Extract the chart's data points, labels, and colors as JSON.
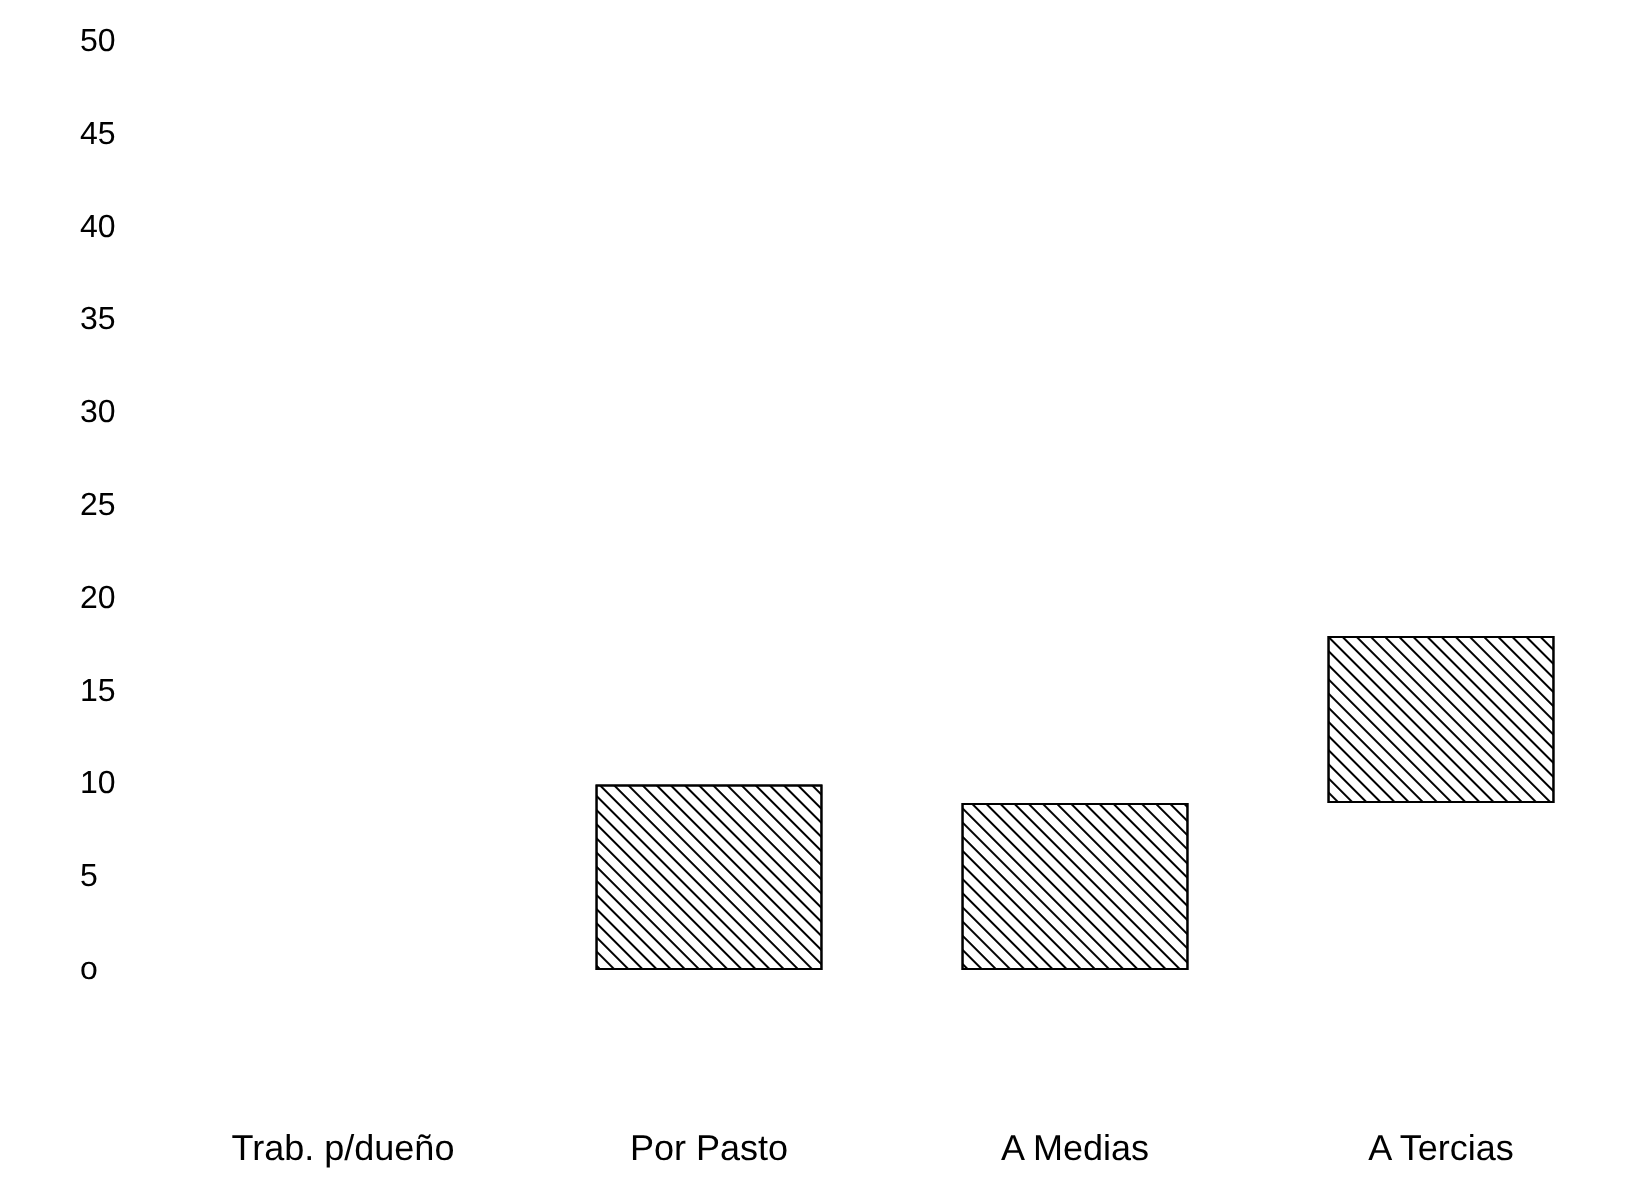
{
  "chart_data": {
    "type": "bar",
    "categories": [
      "Trab. p/dueño",
      "Por Pasto",
      "A Medias",
      "A Tercias"
    ],
    "values": [
      null,
      10,
      9,
      9
    ],
    "base": [
      null,
      0,
      0,
      9
    ],
    "color": "#000000",
    "ylim": [
      0,
      50
    ],
    "yticks": [
      {
        "value": 0,
        "label": "o"
      },
      5,
      10,
      15,
      20,
      25,
      30,
      35,
      40,
      45,
      50
    ],
    "grid": false
  }
}
